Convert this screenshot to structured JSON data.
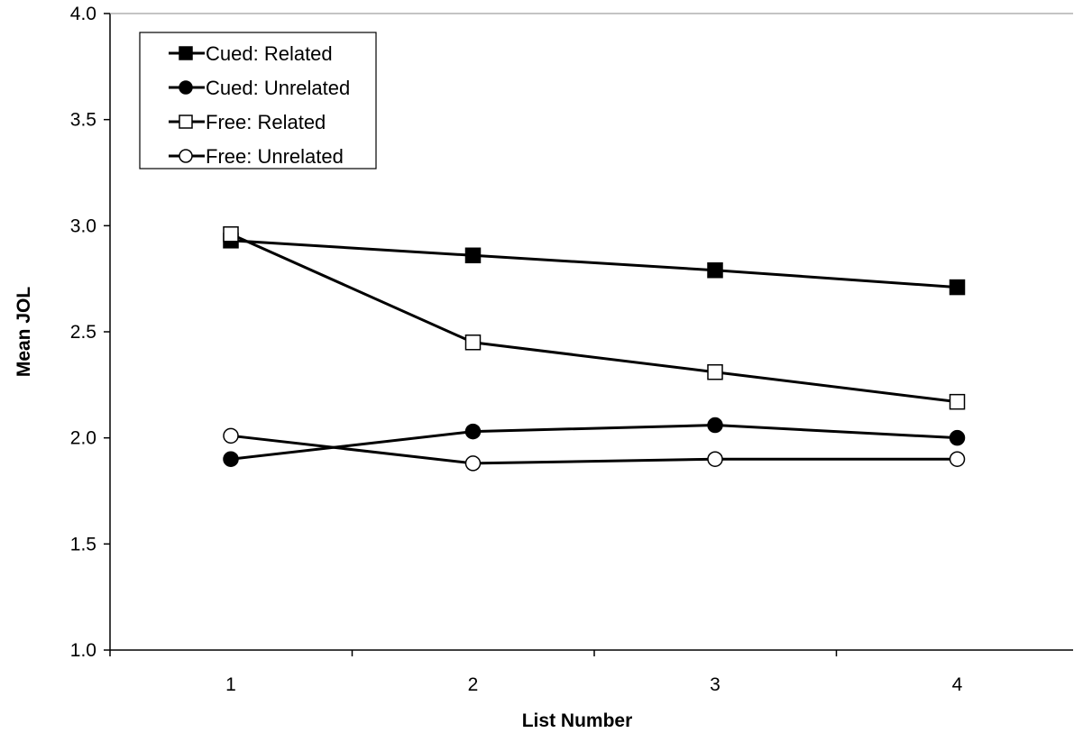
{
  "chart_data": {
    "type": "line",
    "title": "",
    "xlabel": "List Number",
    "ylabel": "Mean JOL",
    "categories": [
      "1",
      "2",
      "3",
      "4"
    ],
    "ylim": [
      1.0,
      4.0
    ],
    "yticks": [
      "1.0",
      "1.5",
      "2.0",
      "2.5",
      "3.0",
      "3.5",
      "4.0"
    ],
    "grid": false,
    "legend_position": "top-left",
    "series": [
      {
        "name": "Cued: Related",
        "marker": "square",
        "filled": true,
        "values": [
          2.93,
          2.86,
          2.79,
          2.71
        ]
      },
      {
        "name": "Cued: Unrelated",
        "marker": "circle",
        "filled": true,
        "values": [
          1.9,
          2.03,
          2.06,
          2.0
        ]
      },
      {
        "name": "Free: Related",
        "marker": "square",
        "filled": false,
        "values": [
          2.96,
          2.45,
          2.31,
          2.17
        ]
      },
      {
        "name": "Free: Unrelated",
        "marker": "circle",
        "filled": false,
        "values": [
          2.01,
          1.88,
          1.9,
          1.9
        ]
      }
    ],
    "colors": {
      "line": "#000000",
      "marker_fill": "#000000",
      "hollow_fill": "#ffffff"
    }
  }
}
